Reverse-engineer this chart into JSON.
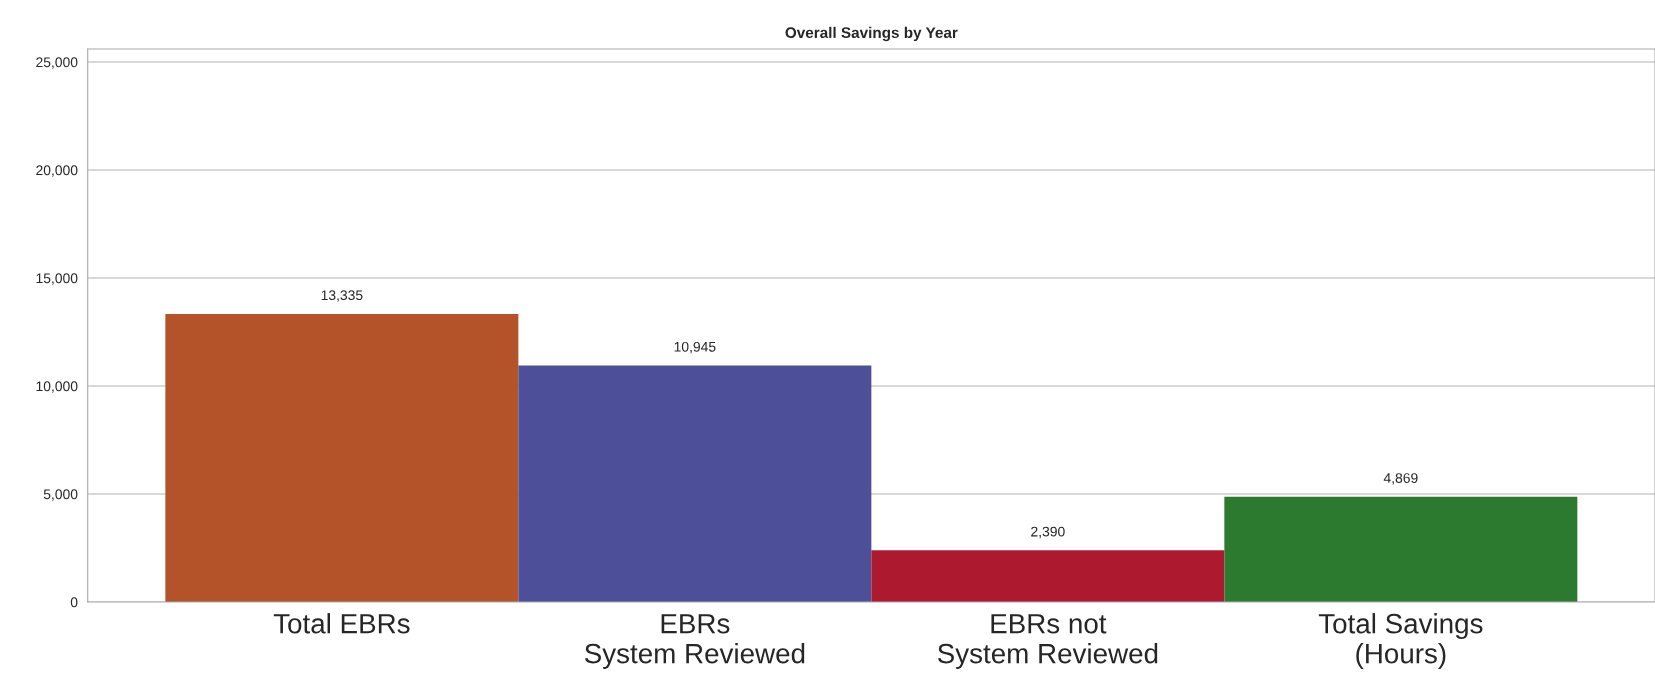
{
  "chart_data": {
    "type": "bar",
    "title": "Overall Savings by Year",
    "categories": [
      "Total EBRs",
      "EBRs\nSystem Reviewed",
      "EBRs not\nSystem Reviewed",
      "Total Savings\n(Hours)"
    ],
    "values": [
      13335,
      10945,
      2390,
      4869
    ],
    "colors": [
      "#b4522a",
      "#4e4f99",
      "#ad1a30",
      "#2c7a30"
    ],
    "data_labels": true,
    "value_labels": [
      "13,335",
      "10,945",
      "2,390",
      "4,869"
    ],
    "ylim": [
      0,
      25600
    ],
    "yticks": [
      {
        "value": 0,
        "label": "0"
      },
      {
        "value": 5000,
        "label": "5,000"
      },
      {
        "value": 10000,
        "label": "10,000"
      },
      {
        "value": 15000,
        "label": "15,000"
      },
      {
        "value": 20000,
        "label": "20,000"
      },
      {
        "value": 25000,
        "label": "25,000"
      }
    ],
    "grid": "y",
    "legend": false
  }
}
